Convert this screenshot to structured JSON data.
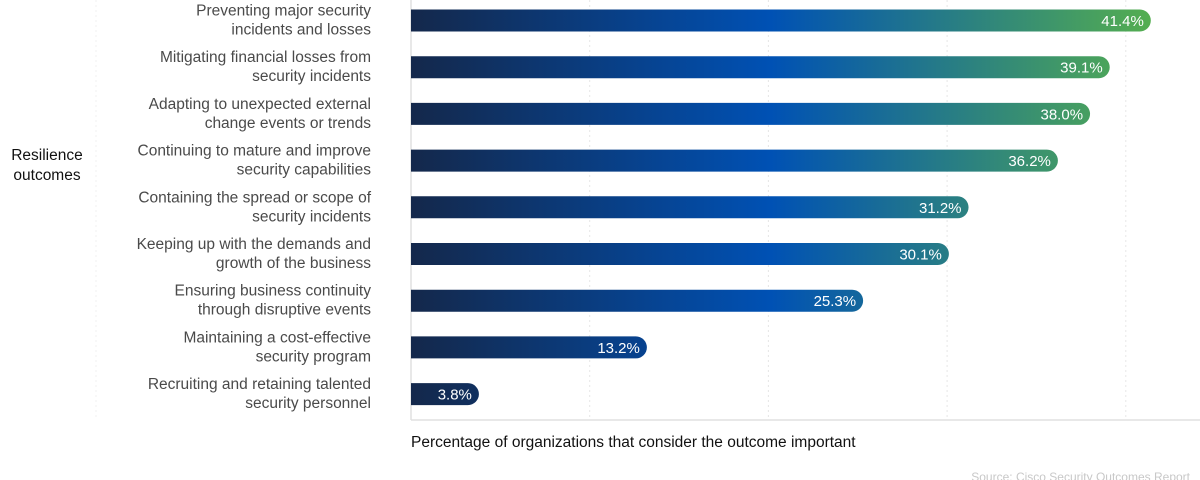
{
  "chart_data": {
    "type": "bar",
    "orientation": "horizontal",
    "group_label": "Resilience outcomes",
    "categories": [
      [
        "Preventing major security",
        "incidents and losses"
      ],
      [
        "Mitigating financial losses from",
        "security incidents"
      ],
      [
        "Adapting to unexpected external",
        "change events or trends"
      ],
      [
        "Continuing to mature and improve",
        "security capabilities"
      ],
      [
        "Containing the spread or scope of",
        "security incidents"
      ],
      [
        "Keeping up with the demands and",
        "growth of the business"
      ],
      [
        "Ensuring business continuity",
        "through disruptive events"
      ],
      [
        "Maintaining a cost-effective",
        "security program"
      ],
      [
        "Recruiting and retaining talented",
        "security personnel"
      ]
    ],
    "values": [
      41.4,
      39.1,
      38.0,
      36.2,
      31.2,
      30.1,
      25.3,
      13.2,
      3.8
    ],
    "value_labels": [
      "41.4%",
      "39.1%",
      "38.0%",
      "36.2%",
      "31.2%",
      "30.1%",
      "25.3%",
      "13.2%",
      "3.8%"
    ],
    "xlabel": "Percentage of organizations that consider the outcome important",
    "ylabel": "Resilience outcomes",
    "xlim": [
      0,
      44
    ],
    "gridlines_x": [
      10,
      20,
      30,
      40
    ],
    "grid": true,
    "source": "Source: Cisco Security Outcomes Report",
    "colors": {
      "gradient_start": "#14284b",
      "gradient_mid": "#0051b4",
      "gradient_end": "#56b04e",
      "category_text": "#4a4a4a",
      "value_text": "#ffffff",
      "gridline": "#e6e6e6",
      "source_text": "#c8c8c8"
    }
  }
}
